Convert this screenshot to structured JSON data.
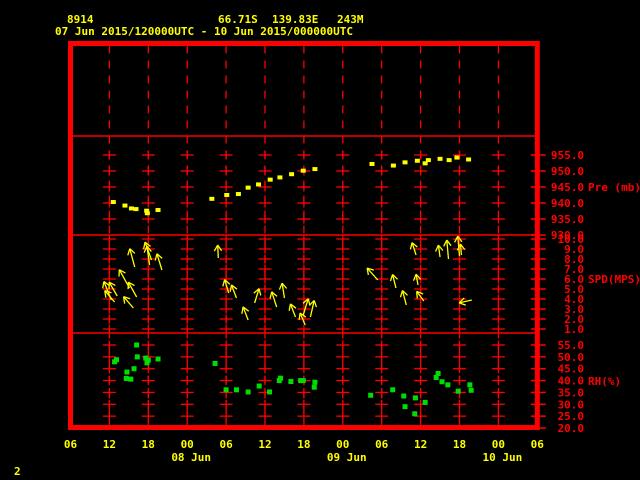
{
  "header": {
    "station_id": "8914",
    "latitude": "66.71S",
    "longitude": "139.83E",
    "elevation": "243M",
    "period": "07 Jun 2015/120000UTC - 10 Jun 2015/000000UTC"
  },
  "page_number": "2",
  "colors": {
    "background": "#000000",
    "axis_red": "#ff0000",
    "data_yellow": "#ffff00",
    "data_green": "#00dd00"
  },
  "chart_data": {
    "type": "scatter",
    "title": "",
    "layout": {
      "grid": "dashed-vertical-columns-with-cross-ticks",
      "legend": "none",
      "panel_order_top_to_bottom": [
        "blank",
        "pressure",
        "wind",
        "rh"
      ]
    },
    "x_axis": {
      "unit": "hour UTC",
      "range_hours": [
        6,
        78
      ],
      "tick_interval_hours": 6,
      "hour_tick_labels": [
        "06",
        "12",
        "18",
        "00",
        "06",
        "12",
        "18",
        "00",
        "06",
        "12",
        "18",
        "00",
        "06"
      ],
      "date_labels": [
        {
          "label": "08 Jun",
          "hour": 24
        },
        {
          "label": "09 Jun",
          "hour": 48
        },
        {
          "label": "10 Jun",
          "hour": 72
        }
      ]
    },
    "panels": [
      {
        "id": "blank-top",
        "ylabel": "",
        "ticks": [],
        "tick_labels": []
      },
      {
        "id": "pressure",
        "ylabel": "Pre (mb)",
        "unit": "mb",
        "ylim": [
          930,
          955
        ],
        "ticks": [
          955,
          950,
          945,
          940,
          935,
          930
        ],
        "tick_labels": [
          "955.0",
          "950.0",
          "945.0",
          "940.0",
          "935.0",
          "930.0"
        ],
        "points": [
          [
            12.6,
            940.3
          ],
          [
            14.4,
            939.2
          ],
          [
            15.4,
            938.3
          ],
          [
            16.1,
            938.1
          ],
          [
            17.75,
            937.6
          ],
          [
            17.85,
            936.8
          ],
          [
            19.5,
            937.8
          ],
          [
            27.8,
            941.3
          ],
          [
            30.1,
            942.5
          ],
          [
            31.9,
            942.8
          ],
          [
            33.4,
            944.8
          ],
          [
            35.0,
            945.8
          ],
          [
            36.8,
            947.3
          ],
          [
            38.3,
            948.0
          ],
          [
            40.1,
            949.0
          ],
          [
            41.9,
            950.1
          ],
          [
            43.7,
            950.6
          ],
          [
            52.5,
            952.2
          ],
          [
            55.8,
            951.7
          ],
          [
            57.6,
            952.7
          ],
          [
            59.5,
            953.2
          ],
          [
            60.7,
            952.4
          ],
          [
            61.2,
            953.4
          ],
          [
            63.0,
            953.8
          ],
          [
            64.4,
            953.4
          ],
          [
            65.6,
            954.2
          ],
          [
            67.4,
            953.6
          ]
        ]
      },
      {
        "id": "wind-speed",
        "ylabel": "SPD(MPS)",
        "unit": "m/s",
        "ylim": [
          1,
          10
        ],
        "ticks": [
          10,
          9,
          8,
          7,
          6,
          5,
          4,
          3,
          2,
          1
        ],
        "tick_labels": [
          "10.0",
          "9.0",
          "8.0",
          "7.0",
          "6.0",
          "5.0",
          "4.0",
          "3.0",
          "2.0",
          "1.0"
        ],
        "arrows": [
          {
            "t": 12.3,
            "spd": 3.9,
            "dir_deg": -22,
            "len": 20
          },
          {
            "t": 12.8,
            "spd": 3.7,
            "dir_deg": -41,
            "len": 15
          },
          {
            "t": 13.2,
            "spd": 4.3,
            "dir_deg": -30,
            "len": 16
          },
          {
            "t": 15.1,
            "spd": 5.1,
            "dir_deg": -29,
            "len": 21
          },
          {
            "t": 15.7,
            "spd": 3.1,
            "dir_deg": -41,
            "len": 15
          },
          {
            "t": 15.9,
            "spd": 7.2,
            "dir_deg": -15,
            "len": 19
          },
          {
            "t": 16.2,
            "spd": 4.2,
            "dir_deg": -29,
            "len": 17
          },
          {
            "t": 18.2,
            "spd": 7.4,
            "dir_deg": -8,
            "len": 19
          },
          {
            "t": 18.5,
            "spd": 7.9,
            "dir_deg": -20,
            "len": 19
          },
          {
            "t": 20.1,
            "spd": 6.9,
            "dir_deg": -17,
            "len": 17
          },
          {
            "t": 28.8,
            "spd": 8.1,
            "dir_deg": -3,
            "len": 13
          },
          {
            "t": 30.4,
            "spd": 4.6,
            "dir_deg": -17,
            "len": 14
          },
          {
            "t": 31.6,
            "spd": 4.1,
            "dir_deg": -21,
            "len": 14
          },
          {
            "t": 33.4,
            "spd": 1.9,
            "dir_deg": -21,
            "len": 14
          },
          {
            "t": 34.4,
            "spd": 3.6,
            "dir_deg": 17,
            "len": 15
          },
          {
            "t": 37.8,
            "spd": 3.2,
            "dir_deg": -18,
            "len": 16
          },
          {
            "t": 39.0,
            "spd": 4.1,
            "dir_deg": -9,
            "len": 15
          },
          {
            "t": 40.7,
            "spd": 2.2,
            "dir_deg": -21,
            "len": 14
          },
          {
            "t": 41.9,
            "spd": 2.4,
            "dir_deg": 17,
            "len": 17
          },
          {
            "t": 42.2,
            "spd": 1.4,
            "dir_deg": -23,
            "len": 13
          },
          {
            "t": 43.0,
            "spd": 2.2,
            "dir_deg": 13,
            "len": 17
          },
          {
            "t": 53.4,
            "spd": 5.9,
            "dir_deg": -42,
            "len": 16
          },
          {
            "t": 56.2,
            "spd": 5.1,
            "dir_deg": -14,
            "len": 14
          },
          {
            "t": 57.8,
            "spd": 3.4,
            "dir_deg": -15,
            "len": 15
          },
          {
            "t": 59.3,
            "spd": 8.4,
            "dir_deg": -18,
            "len": 13
          },
          {
            "t": 59.6,
            "spd": 5.4,
            "dir_deg": -10,
            "len": 11
          },
          {
            "t": 60.5,
            "spd": 3.8,
            "dir_deg": -37,
            "len": 12
          },
          {
            "t": 63.0,
            "spd": 8.2,
            "dir_deg": -8,
            "len": 12
          },
          {
            "t": 64.3,
            "spd": 8.0,
            "dir_deg": -5,
            "len": 19
          },
          {
            "t": 66.0,
            "spd": 8.3,
            "dir_deg": -5,
            "len": 20
          },
          {
            "t": 66.3,
            "spd": 8.4,
            "dir_deg": -5,
            "len": 11
          },
          {
            "t": 67.9,
            "spd": 3.9,
            "dir_deg": -103,
            "len": 13
          }
        ]
      },
      {
        "id": "relative-humidity",
        "ylabel": "RH(%)",
        "unit": "%",
        "ylim": [
          20,
          55
        ],
        "ticks": [
          55,
          50,
          45,
          40,
          35,
          30,
          25,
          20
        ],
        "tick_labels": [
          "55.0",
          "50.0",
          "45.0",
          "40.0",
          "35.0",
          "30.0",
          "25.0",
          "20.0"
        ],
        "points": [
          [
            12.8,
            47.9
          ],
          [
            13.1,
            48.8
          ],
          [
            14.6,
            40.9
          ],
          [
            14.7,
            43.6
          ],
          [
            15.3,
            40.6
          ],
          [
            15.8,
            45.0
          ],
          [
            16.2,
            55.0
          ],
          [
            16.3,
            50.0
          ],
          [
            17.6,
            49.5
          ],
          [
            17.8,
            47.5
          ],
          [
            18.0,
            48.6
          ],
          [
            19.5,
            49.1
          ],
          [
            28.3,
            47.2
          ],
          [
            30.0,
            36.1
          ],
          [
            31.6,
            36.1
          ],
          [
            33.4,
            35.2
          ],
          [
            35.1,
            37.7
          ],
          [
            36.7,
            35.2
          ],
          [
            38.2,
            40.0
          ],
          [
            38.4,
            41.0
          ],
          [
            40.0,
            39.6
          ],
          [
            41.5,
            40.0
          ],
          [
            41.9,
            40.0
          ],
          [
            43.6,
            37.2
          ],
          [
            43.7,
            39.3
          ],
          [
            52.3,
            33.8
          ],
          [
            55.7,
            36.1
          ],
          [
            57.4,
            33.5
          ],
          [
            57.6,
            29.0
          ],
          [
            59.1,
            26.0
          ],
          [
            59.2,
            32.7
          ],
          [
            60.7,
            30.8
          ],
          [
            62.4,
            41.3
          ],
          [
            62.7,
            43.0
          ],
          [
            63.3,
            39.5
          ],
          [
            64.2,
            38.2
          ],
          [
            65.8,
            35.5
          ],
          [
            67.6,
            38.2
          ],
          [
            67.8,
            35.9
          ]
        ]
      }
    ]
  }
}
